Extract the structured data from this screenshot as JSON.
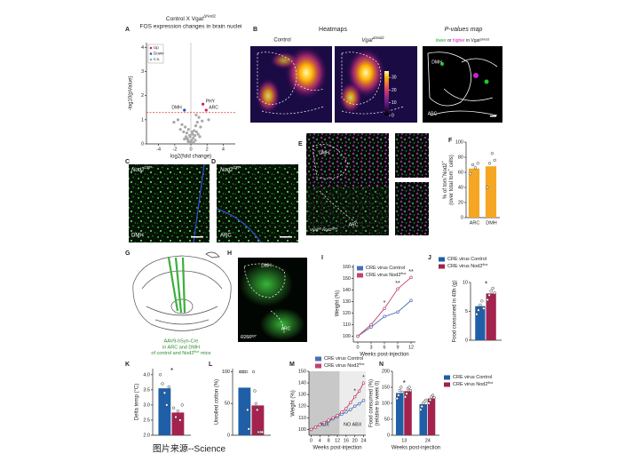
{
  "chart_data": [
    {
      "panel": "A",
      "type": "scatter",
      "title": [
        {
          "t": "Control X Vgat"
        },
        {
          "sup": "ΔNod2"
        }
      ],
      "subtitle": "FOS expression changes in brain nuclei",
      "x_label": "log2(fold change)",
      "y_label": "-log10(pValue)",
      "xlim": [
        -5.5,
        5.5
      ],
      "ylim": [
        0,
        4.2
      ],
      "xticks": [
        -4,
        -2,
        0,
        2,
        4
      ],
      "yticks": [
        0,
        1,
        2,
        3,
        4
      ],
      "threshold": 1.3,
      "series": [
        {
          "name": "Up",
          "color": "#d6205a",
          "x": [
            1.5,
            1.9
          ],
          "y": [
            1.65,
            1.4
          ],
          "labels": [
            "PHY",
            "ARC"
          ]
        },
        {
          "name": "Down",
          "color": "#3050b0",
          "x": [
            -0.8
          ],
          "y": [
            1.4
          ],
          "labels": [
            "DMH"
          ]
        },
        {
          "name": "n.s.",
          "color": "#a8a8a8",
          "x": [
            -2.1,
            -1.6,
            -1.3,
            -1.1,
            -0.9,
            -0.7,
            -0.6,
            -0.5,
            -0.4,
            -0.3,
            -0.2,
            -0.1,
            0,
            0.1,
            0.2,
            0.3,
            0.4,
            0.5,
            0.6,
            0.7,
            0.8,
            0.9,
            1.0,
            1.2,
            1.4,
            -0.8,
            0.35,
            -0.35,
            0.15,
            -0.15,
            0.55,
            -0.55,
            1.1,
            2.2,
            0.65
          ],
          "y": [
            0.9,
            1.0,
            0.6,
            0.8,
            0.5,
            0.7,
            0.3,
            0.45,
            0.2,
            0.6,
            0.1,
            0.3,
            0.05,
            0.15,
            0.4,
            0.25,
            0.55,
            0.35,
            0.75,
            0.5,
            0.9,
            0.4,
            1.1,
            0.7,
            0.95,
            0.2,
            0.05,
            0.1,
            0.5,
            0.35,
            0.15,
            0.25,
            0.3,
            1.0,
            1.2
          ]
        }
      ]
    },
    {
      "panel": "F",
      "type": "bar",
      "y_label": [
        {
          "t": "% of tom"
        },
        {
          "sup": "+"
        },
        {
          "t": "Nod2"
        },
        {
          "sup": "+"
        }
      ],
      "y_label2": [
        {
          "t": "(over total tom"
        },
        {
          "sup": "+"
        },
        {
          "t": " cells)"
        }
      ],
      "categories": [
        "ARC",
        "DMH"
      ],
      "ylim": [
        0,
        100
      ],
      "yticks": [
        0,
        20,
        40,
        60,
        80,
        100
      ],
      "series": [
        {
          "color": "#f5a623",
          "values": [
            65,
            68
          ],
          "points": [
            [
              58,
              70,
              66,
              72
            ],
            [
              40,
              72,
              85,
              76
            ]
          ]
        }
      ]
    },
    {
      "panel": "I",
      "type": "line",
      "x_label": "Weeks post-injection",
      "y_label": "Weight (%)",
      "x": [
        0,
        3,
        6,
        9,
        12
      ],
      "xlim": [
        -1,
        13
      ],
      "xticks": [
        0,
        3,
        6,
        9,
        12
      ],
      "ylim": [
        95,
        162
      ],
      "yticks": [
        100,
        110,
        120,
        130,
        140,
        150,
        160
      ],
      "series": [
        {
          "name": [
            {
              "t": "CRE virus Control"
            }
          ],
          "color": "#4a6fb5",
          "values": [
            100,
            108,
            117,
            121,
            131
          ]
        },
        {
          "name": [
            {
              "t": "CRE virus Nod2"
            },
            {
              "sup": "flox"
            }
          ],
          "color": "#c0436e",
          "values": [
            100,
            110,
            124,
            141,
            151
          ]
        }
      ],
      "stars": [
        "*",
        "**",
        "**"
      ]
    },
    {
      "panel": "J",
      "type": "bar",
      "y_label": "Food consumed in 40h (g)",
      "categories": [
        null
      ],
      "ylim": [
        0,
        10
      ],
      "yticks": [
        0,
        5,
        10
      ],
      "series": [
        {
          "name": [
            {
              "t": "CRE virus Control"
            }
          ],
          "color": "#1f5fa8",
          "values": [
            5.9
          ],
          "points": [
            [
              4.5,
              5.2,
              6.1,
              6.8,
              5.5
            ]
          ]
        },
        {
          "name": [
            {
              "t": "CRE virus Nod2"
            },
            {
              "sup": "flox"
            }
          ],
          "color": "#a3224e",
          "values": [
            8.1
          ],
          "points": [
            [
              7.0,
              7.8,
              8.5,
              9.0,
              8.2
            ]
          ]
        }
      ],
      "stars": [
        "*"
      ]
    },
    {
      "panel": "K",
      "type": "bar",
      "y_label": "Delta temp (°C)",
      "categories": [
        null
      ],
      "ylim": [
        2,
        4.2
      ],
      "yticks": [
        {
          "value": 2,
          "label": "2.0"
        },
        2.5,
        {
          "value": 3,
          "label": "3.0"
        },
        3.5,
        {
          "value": 4,
          "label": "4.0"
        }
      ],
      "series": [
        {
          "color": "#1f5fa8",
          "values": [
            3.55
          ],
          "points": [
            [
              4.0,
              3.7,
              3.4,
              3.0,
              3.6
            ]
          ]
        },
        {
          "color": "#a3224e",
          "values": [
            2.75
          ],
          "points": [
            [
              2.9,
              2.6,
              2.8,
              2.5,
              3.0
            ]
          ]
        }
      ],
      "stars": [
        "*"
      ]
    },
    {
      "panel": "L",
      "type": "bar",
      "y_label": "Unrolled cotton (%)",
      "categories": [
        null
      ],
      "ylim": [
        0,
        105
      ],
      "yticks": [
        0,
        50,
        100
      ],
      "series": [
        {
          "color": "#1f5fa8",
          "values": [
            75
          ],
          "points": [
            [
              100,
              100,
              100,
              100,
              100,
              100,
              40,
              10
            ]
          ]
        },
        {
          "color": "#a3224e",
          "values": [
            47
          ],
          "points": [
            [
              100,
              70,
              50,
              40,
              5,
              5,
              5,
              5
            ]
          ]
        }
      ]
    },
    {
      "panel": "M",
      "type": "line",
      "x_label": "Weeks post-injection",
      "y_label": "Weight (%)",
      "x": [
        0,
        2,
        4,
        6,
        8,
        10,
        12,
        14,
        16,
        18,
        20,
        22,
        24
      ],
      "xlim": [
        -1,
        25
      ],
      "xticks": [
        0,
        4,
        8,
        12,
        16,
        20,
        24
      ],
      "ylim": [
        95,
        150
      ],
      "yticks": [
        100,
        110,
        120,
        130,
        140,
        150
      ],
      "regions": [
        {
          "label": "ABX",
          "range": [
            -1,
            13
          ]
        },
        {
          "label": "NO ABX",
          "range": [
            13,
            25
          ]
        }
      ],
      "series": [
        {
          "name": [
            {
              "t": "CRE virus Control"
            }
          ],
          "color": "#4a6fb5",
          "values": [
            100,
            102,
            104,
            105,
            107,
            109,
            111,
            113,
            115,
            117,
            120,
            122,
            125
          ]
        },
        {
          "name": [
            {
              "t": "CRE virus Nod2"
            },
            {
              "sup": "flox"
            }
          ],
          "color": "#c0436e",
          "values": [
            100,
            102,
            104,
            106,
            108,
            110,
            112,
            115,
            118,
            123,
            128,
            133,
            140
          ]
        }
      ],
      "stars": [
        "*",
        "*"
      ]
    },
    {
      "panel": "N",
      "type": "bar",
      "x_label": "Weeks post-injection",
      "y_label": "Food consumed (%)",
      "y_label2": "(relative to week 0)",
      "categories": [
        "13",
        "24"
      ],
      "ylim": [
        0,
        200
      ],
      "yticks": [
        0,
        50,
        100,
        150,
        200
      ],
      "series": [
        {
          "name": [
            {
              "t": "CRE virus Control"
            }
          ],
          "color": "#1f5fa8",
          "values": [
            132,
            97
          ],
          "points": [
            [
              115,
              125,
              140,
              150,
              135
            ],
            [
              80,
              90,
              100,
              105,
              110
            ]
          ]
        },
        {
          "name": [
            {
              "t": "CRE virus Nod2"
            },
            {
              "sup": "flox"
            }
          ],
          "color": "#a3224e",
          "values": [
            138,
            115
          ],
          "points": [
            [
              120,
              130,
              145,
              150,
              140
            ],
            [
              100,
              110,
              120,
              125,
              118
            ]
          ]
        }
      ],
      "stars": [
        "*"
      ]
    }
  ],
  "images": {
    "B": {
      "panel": "B",
      "heading": "Heatmaps",
      "pmap_heading": "P-values map",
      "control": "Control",
      "mutant": [
        {
          "t": "Vgat"
        },
        {
          "sup": "ΔNod2"
        }
      ],
      "pmap_sub": [
        {
          "t": "lower",
          "color": "#22a822"
        },
        {
          "t": " or "
        },
        {
          "t": "higher",
          "color": "#cc22cc"
        },
        {
          "t": " in "
        },
        {
          "t": "Vgat"
        },
        {
          "sup": "ΔNod2"
        }
      ],
      "pmap_labels": [
        "DMH",
        "ARC"
      ],
      "colorbar_lim": [
        0,
        35
      ],
      "colorbar_ticks": [
        0,
        10,
        20,
        30
      ]
    },
    "C": {
      "panel": "C",
      "marker": [
        {
          "t": "Nod2"
        },
        {
          "sup": "GFP"
        }
      ],
      "region": "DMH"
    },
    "D": {
      "panel": "D",
      "marker": [
        {
          "t": "Nod2"
        },
        {
          "sup": "GFP"
        }
      ],
      "region": "ARC"
    },
    "E": {
      "panel": "E",
      "regions": [
        "DMH",
        "ARC"
      ],
      "marker": [
        {
          "t": "Vgat"
        },
        {
          "sup": "tdt"
        },
        {
          "t": " Nod2"
        },
        {
          "sup": "GFP"
        }
      ]
    },
    "G": {
      "panel": "G",
      "caption": [
        "AAV9-hSyn-Cre",
        "in ARC and DMH",
        [
          {
            "t": "of control and "
          },
          {
            "t": "Nod2"
          },
          {
            "sup": "flox"
          },
          {
            "t": " mice"
          }
        ]
      ]
    },
    "H": {
      "panel": "H",
      "regions": [
        "DMH",
        "ARC"
      ],
      "marker": [
        {
          "t": "R26R"
        },
        {
          "sup": "tdT"
        }
      ]
    }
  },
  "footer": "图片来源--Science"
}
